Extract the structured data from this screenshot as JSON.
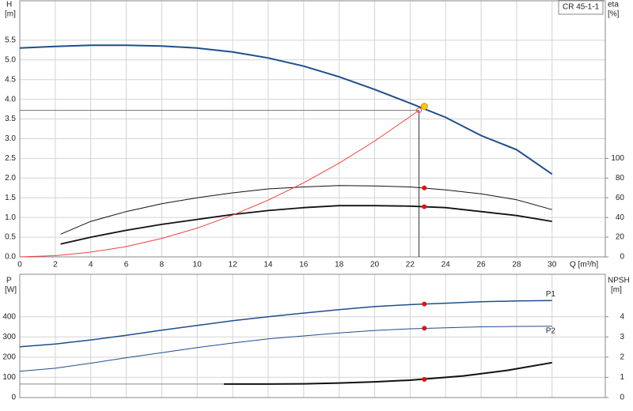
{
  "chart_data": [
    {
      "type": "line",
      "y_label": "H",
      "y_unit": "[m]",
      "y2_label": "eta",
      "y2_unit": "[%]",
      "x_label": "Q [m³/h]",
      "model": "CR 45-1-1",
      "xlim": [
        0,
        33
      ],
      "xticks": [
        0,
        2,
        4,
        6,
        8,
        10,
        12,
        14,
        16,
        18,
        20,
        22,
        24,
        26,
        28,
        30
      ],
      "ylim": [
        0,
        6.5
      ],
      "yticks": [
        {
          "value": 0,
          "label": "0.0"
        },
        0.5,
        {
          "value": 1,
          "label": "1.0"
        },
        1.5,
        {
          "value": 2,
          "label": "2.0"
        },
        2.5,
        {
          "value": 3,
          "label": "3.0"
        },
        3.5,
        {
          "value": 4,
          "label": "4.0"
        },
        4.5,
        {
          "value": 5,
          "label": "5.0"
        },
        5.5
      ],
      "y2lim": [
        0,
        260
      ],
      "y2ticks": [
        0,
        20,
        40,
        60,
        80,
        100
      ],
      "grid": true,
      "xtick_labels": true,
      "duty_x": 22.8,
      "system_point": {
        "x": 22.5,
        "y": 3.72
      },
      "series": [
        {
          "color": "#1f4e8c",
          "line_width": 2,
          "duty_value": 3.82,
          "duty_color": "#f5c518",
          "x": [
            0,
            2,
            4,
            6,
            8,
            10,
            12,
            14,
            16,
            18,
            20,
            22,
            24,
            26,
            28,
            30
          ],
          "values": [
            5.3,
            5.34,
            5.37,
            5.37,
            5.35,
            5.3,
            5.2,
            5.05,
            4.84,
            4.57,
            4.25,
            3.9,
            3.54,
            3.08,
            2.72,
            2.1
          ]
        },
        {
          "color": "#111111",
          "line_width": 1,
          "axis": "y2",
          "duty_value": 70,
          "duty_color": "#e01010",
          "x": [
            2.3,
            4,
            6,
            8,
            10,
            12,
            14,
            16,
            18,
            20,
            22,
            24,
            26,
            28,
            30
          ],
          "values": [
            23,
            36,
            46,
            54,
            60,
            65,
            69,
            71,
            72.5,
            72,
            71,
            68,
            64,
            58,
            48
          ]
        },
        {
          "color": "#111111",
          "line_width": 1.8,
          "axis": "y2",
          "duty_value": 51,
          "duty_color": "#e01010",
          "x": [
            2.3,
            4,
            6,
            8,
            10,
            12,
            14,
            16,
            18,
            20,
            22,
            24,
            26,
            28,
            30
          ],
          "values": [
            13,
            20,
            27,
            33,
            38,
            43,
            47,
            50,
            52,
            52,
            51.5,
            50,
            46,
            42,
            36
          ]
        },
        {
          "color": "#f04040",
          "line_width": 1,
          "x": [
            0,
            2,
            4,
            6,
            8,
            10,
            12,
            14,
            16,
            18,
            20,
            22,
            22.5
          ],
          "values": [
            0,
            0.03,
            0.12,
            0.26,
            0.47,
            0.73,
            1.06,
            1.44,
            1.88,
            2.38,
            2.94,
            3.56,
            3.72
          ]
        }
      ]
    },
    {
      "type": "line",
      "y_label": "P",
      "y_unit": "[W]",
      "y2_label": "NPSH",
      "y2_unit": "[m]",
      "xlim": [
        0,
        33
      ],
      "xticks": [
        0,
        2,
        4,
        6,
        8,
        10,
        12,
        14,
        16,
        18,
        20,
        22,
        24,
        26,
        28,
        30
      ],
      "ylim": [
        0,
        610
      ],
      "yticks": [
        0,
        100,
        200,
        300,
        400
      ],
      "y2lim": [
        0,
        6.1
      ],
      "y2ticks": [
        0,
        1,
        2,
        3,
        4
      ],
      "grid": true,
      "xtick_labels": false,
      "duty_x": 22.8,
      "series": [
        {
          "name": "P1",
          "color": "#1f4e8c",
          "line_width": 1.5,
          "duty_value": 463,
          "duty_color": "#e01010",
          "x": [
            0,
            2,
            4,
            6,
            8,
            10,
            12,
            14,
            16,
            18,
            20,
            22,
            24,
            26,
            28,
            30
          ],
          "values": [
            251,
            265,
            285,
            308,
            333,
            357,
            380,
            400,
            418,
            435,
            450,
            460,
            467,
            474,
            478,
            480
          ]
        },
        {
          "name": "P2",
          "color": "#1f4e8c",
          "line_width": 1,
          "duty_value": 343,
          "duty_color": "#e01010",
          "x": [
            0,
            2,
            4,
            6,
            8,
            10,
            12,
            14,
            16,
            18,
            20,
            22,
            24,
            26,
            28,
            30
          ],
          "values": [
            130,
            145,
            170,
            197,
            222,
            247,
            270,
            290,
            305,
            320,
            332,
            340,
            345,
            350,
            352,
            353
          ]
        },
        {
          "color": "#111111",
          "line_width": 2,
          "axis": "y2",
          "duty_value": 0.9,
          "duty_color": "#e01010",
          "x": [
            11.5,
            14,
            16,
            18,
            20,
            22,
            25,
            27.5,
            30
          ],
          "values": [
            0.67,
            0.67,
            0.68,
            0.72,
            0.78,
            0.86,
            1.07,
            1.35,
            1.73
          ]
        }
      ]
    }
  ]
}
